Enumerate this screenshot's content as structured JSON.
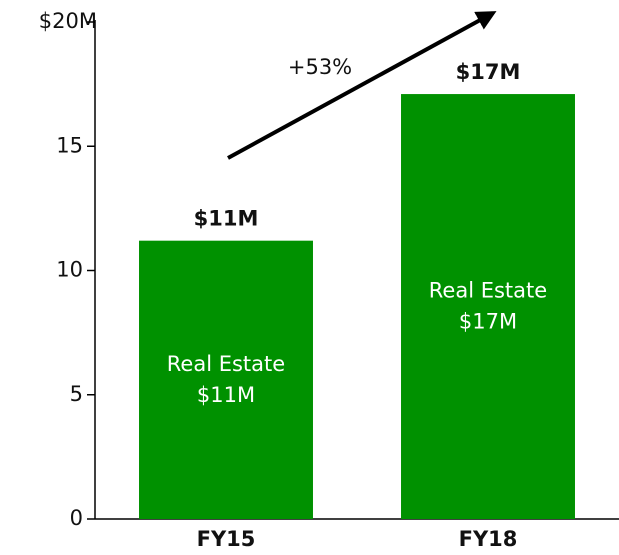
{
  "chart_data": {
    "type": "bar",
    "categories": [
      "FY15",
      "FY18"
    ],
    "series": [
      {
        "name": "Real Estate",
        "color": "#009100",
        "values": [
          11.2,
          17.1
        ],
        "value_labels": [
          "$11M",
          "$17M"
        ]
      }
    ],
    "ylim": [
      0,
      20
    ],
    "yticks": [
      0,
      5,
      10,
      15,
      {
        "value": 20,
        "label": "$20M"
      }
    ],
    "annotation": "+53%"
  }
}
